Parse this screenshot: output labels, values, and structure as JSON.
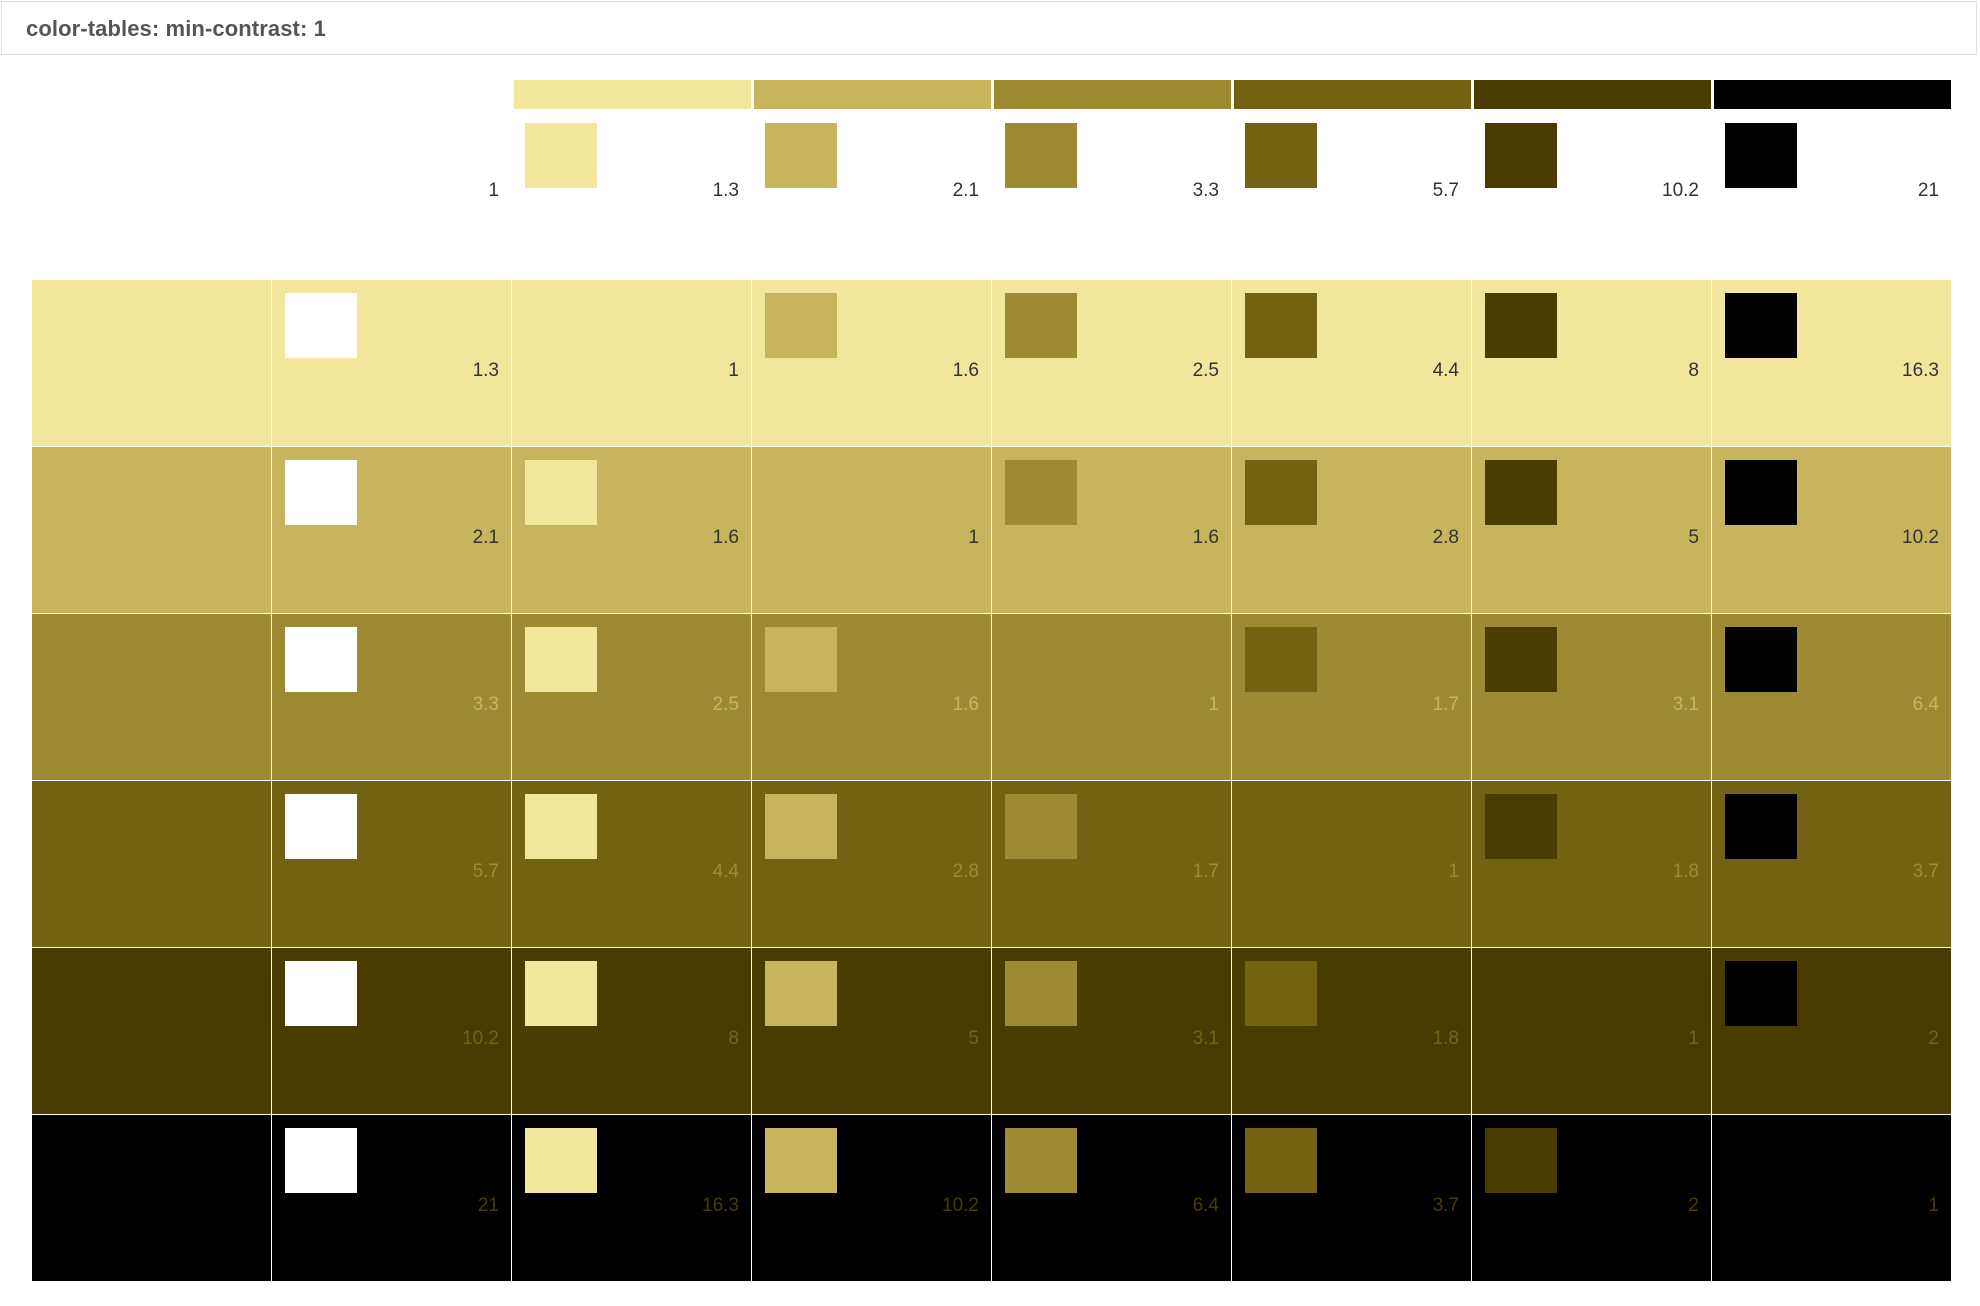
{
  "title": "color-tables: min-contrast: 1",
  "colors": [
    "#ffffff",
    "#f2e59c",
    "#c7b45c",
    "#9e8a33",
    "#746213",
    "#4a3c01",
    "#000000"
  ],
  "header": {
    "ratios": [
      "1",
      "1.3",
      "2.1",
      "3.3",
      "5.7",
      "10.2",
      "21"
    ]
  },
  "rows": [
    {
      "ratios": [
        "1.3",
        "1",
        "1.6",
        "2.5",
        "4.4",
        "8",
        "16.3"
      ]
    },
    {
      "ratios": [
        "2.1",
        "1.6",
        "1",
        "1.6",
        "2.8",
        "5",
        "10.2"
      ]
    },
    {
      "ratios": [
        "3.3",
        "2.5",
        "1.6",
        "1",
        "1.7",
        "3.1",
        "6.4"
      ]
    },
    {
      "ratios": [
        "5.7",
        "4.4",
        "2.8",
        "1.7",
        "1",
        "1.8",
        "3.7"
      ]
    },
    {
      "ratios": [
        "10.2",
        "8",
        "5",
        "3.1",
        "1.8",
        "1",
        "2"
      ]
    },
    {
      "ratios": [
        "21",
        "16.3",
        "10.2",
        "6.4",
        "3.7",
        "2",
        "1"
      ]
    }
  ],
  "label_colors": [
    "#333333",
    "#333333",
    "#c7b45c",
    "#9e8a33",
    "#746213",
    "#4a3c01"
  ]
}
